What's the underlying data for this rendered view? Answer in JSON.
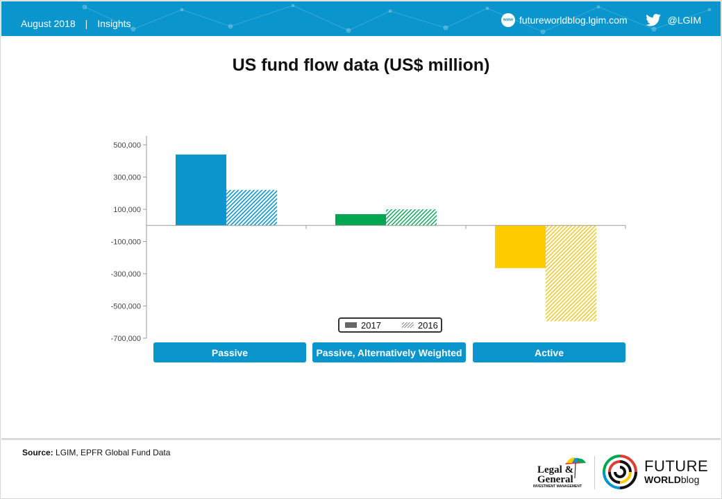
{
  "header": {
    "date": "August 2018",
    "separator": "|",
    "section": "Insights",
    "website": "futureworldblog.lgim.com",
    "www_badge": "www",
    "twitter": "@LGIM",
    "bar_color": "#0a96cc"
  },
  "title": "US fund flow data (US$ million)",
  "chart_data": {
    "type": "bar",
    "categories": [
      "Passive",
      "Passive, Alternatively Weighted",
      "Active"
    ],
    "series": [
      {
        "name": "2017",
        "values": [
          440000,
          70000,
          -265000
        ],
        "pattern": "solid"
      },
      {
        "name": "2016",
        "values": [
          220000,
          100000,
          -595000
        ],
        "pattern": "hatched"
      }
    ],
    "category_colors": [
      "#0a96cc",
      "#00a651",
      "#ffcc00"
    ],
    "yticks": [
      500000,
      300000,
      100000,
      -100000,
      -300000,
      -500000,
      -700000
    ],
    "ytick_labels": [
      "500,000",
      "300,000",
      "100,000",
      "-100,000",
      "-300,000",
      "-500,000",
      "-700,000"
    ],
    "ylim": [
      -700000,
      500000
    ],
    "legend_position": "bottom-center",
    "grid": false
  },
  "footer": {
    "source_label": "Source:",
    "source_text": "LGIM, EPFR Global Fund Data",
    "lg_line1": "Legal &",
    "lg_line2": "General",
    "lg_line3": "INVESTMENT MANAGEMENT",
    "fw_line1": "FUTURE",
    "fw_line2a": "WORLD",
    "fw_line2b": "blog"
  }
}
